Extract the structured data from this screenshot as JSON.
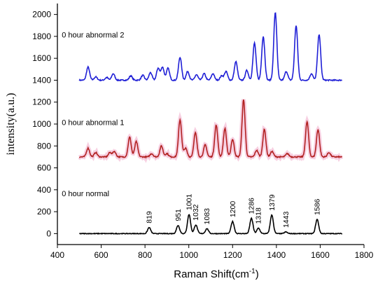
{
  "chart_data": {
    "type": "line",
    "xlabel": "Raman Shift(cm",
    "xlabel_sup": "-1",
    "xlabel_close": ")",
    "ylabel": "intensity(a.u.)",
    "xlim": [
      400,
      1800
    ],
    "ylim": [
      -100,
      2100
    ],
    "xticks": [
      400,
      600,
      800,
      1000,
      1200,
      1400,
      1600,
      1800
    ],
    "yticks": [
      0,
      200,
      400,
      600,
      800,
      1000,
      1200,
      1400,
      1600,
      1800,
      2000
    ],
    "x_range": [
      500,
      1700
    ],
    "series": [
      {
        "name": "0 hour abnormal 2",
        "color": "#1f1fd6",
        "baseline": 1400,
        "label_pos": [
          420,
          1790
        ],
        "peaks": [
          [
            540,
            120
          ],
          [
            575,
            30
          ],
          [
            625,
            25
          ],
          [
            655,
            60
          ],
          [
            735,
            40
          ],
          [
            790,
            45
          ],
          [
            825,
            70
          ],
          [
            860,
            110
          ],
          [
            880,
            120
          ],
          [
            905,
            110
          ],
          [
            960,
            210
          ],
          [
            995,
            80
          ],
          [
            1035,
            50
          ],
          [
            1070,
            60
          ],
          [
            1110,
            60
          ],
          [
            1150,
            40
          ],
          [
            1170,
            80
          ],
          [
            1215,
            170
          ],
          [
            1265,
            90
          ],
          [
            1300,
            340
          ],
          [
            1340,
            400
          ],
          [
            1395,
            620
          ],
          [
            1445,
            80
          ],
          [
            1490,
            500
          ],
          [
            1560,
            60
          ],
          [
            1595,
            420
          ]
        ]
      },
      {
        "name": "0 hour abnormal 1",
        "color": "#b22222",
        "glow": "#f0a8c8",
        "baseline": 700,
        "label_pos": [
          420,
          990
        ],
        "peaks": [
          [
            540,
            80
          ],
          [
            575,
            40
          ],
          [
            640,
            40
          ],
          [
            660,
            50
          ],
          [
            730,
            180
          ],
          [
            760,
            140
          ],
          [
            830,
            30
          ],
          [
            875,
            100
          ],
          [
            900,
            30
          ],
          [
            960,
            340
          ],
          [
            985,
            80
          ],
          [
            1030,
            220
          ],
          [
            1075,
            110
          ],
          [
            1125,
            290
          ],
          [
            1165,
            260
          ],
          [
            1200,
            160
          ],
          [
            1250,
            520
          ],
          [
            1310,
            60
          ],
          [
            1345,
            250
          ],
          [
            1380,
            50
          ],
          [
            1450,
            30
          ],
          [
            1540,
            320
          ],
          [
            1590,
            250
          ],
          [
            1640,
            40
          ]
        ]
      },
      {
        "name": "0 hour normal",
        "color": "#000000",
        "baseline": 0,
        "label_pos": [
          420,
          340
        ],
        "peaks": [
          [
            819,
            55
          ],
          [
            951,
            75
          ],
          [
            1001,
            175
          ],
          [
            1032,
            80
          ],
          [
            1083,
            45
          ],
          [
            1200,
            110
          ],
          [
            1286,
            140
          ],
          [
            1318,
            50
          ],
          [
            1379,
            170
          ],
          [
            1443,
            15
          ],
          [
            1586,
            130
          ]
        ]
      }
    ],
    "peak_labels": [
      "819",
      "951",
      "1001",
      "1032",
      "1083",
      "1200",
      "1286",
      "1318",
      "1379",
      "1443",
      "1586"
    ]
  }
}
